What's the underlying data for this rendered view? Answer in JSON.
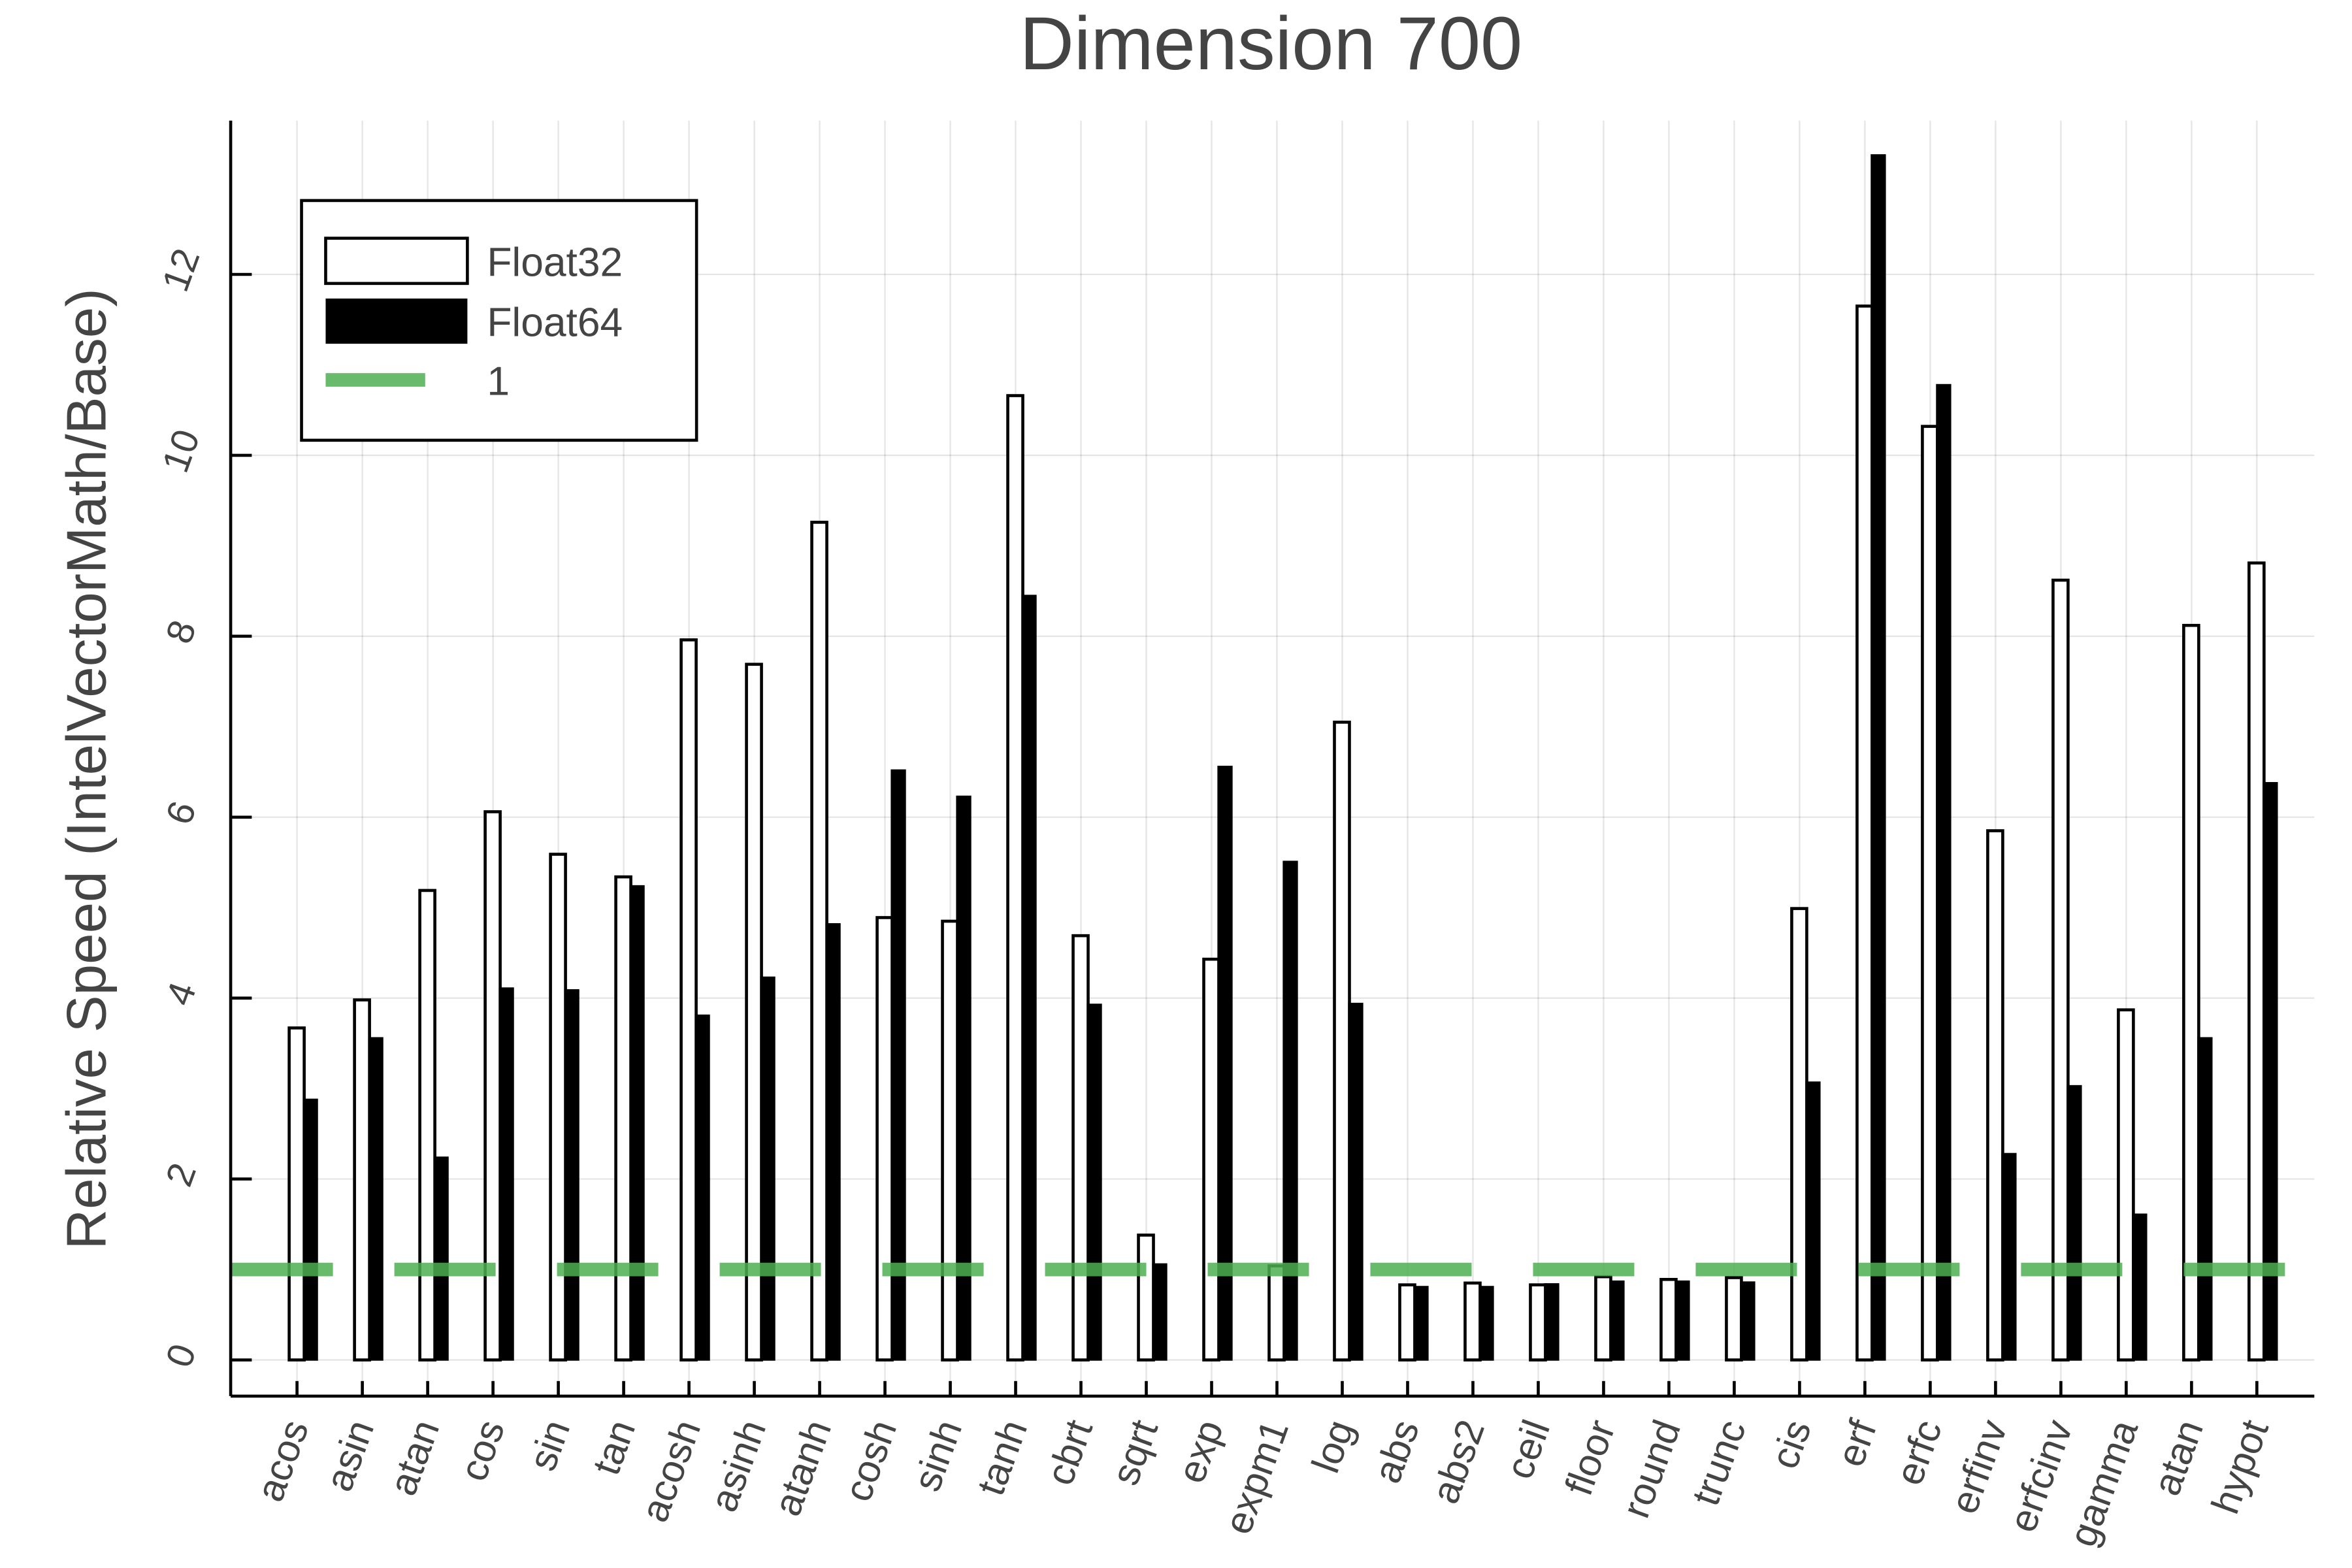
{
  "chart_data": {
    "type": "bar",
    "title": "Dimension 700",
    "xlabel": "",
    "ylabel": "Relative Speed (IntelVectorMath/Base)",
    "ylim": [
      -0.4,
      13.7
    ],
    "yticks": [
      0,
      2,
      4,
      6,
      8,
      10,
      12
    ],
    "grid": true,
    "legend_position": "top-left",
    "categories": [
      "acos",
      "asin",
      "atan",
      "cos",
      "sin",
      "tan",
      "acosh",
      "asinh",
      "atanh",
      "cosh",
      "sinh",
      "tanh",
      "cbrt",
      "sqrt",
      "exp",
      "expm1",
      "log",
      "abs",
      "abs2",
      "ceil",
      "floor",
      "round",
      "trunc",
      "cis",
      "erf",
      "erfc",
      "erfinv",
      "erfcinv",
      "gamma",
      "atan",
      "hypot"
    ],
    "series": [
      {
        "name": "Float32",
        "fill": "#ffffff",
        "stroke": "#000000",
        "values": [
          3.67,
          3.98,
          5.19,
          6.06,
          5.59,
          5.34,
          7.96,
          7.69,
          9.26,
          4.89,
          4.85,
          10.66,
          4.69,
          1.38,
          4.43,
          1.04,
          7.05,
          0.83,
          0.85,
          0.83,
          0.92,
          0.89,
          0.91,
          4.99,
          11.65,
          10.32,
          5.85,
          8.62,
          3.87,
          8.12,
          8.81
        ]
      },
      {
        "name": "Float64",
        "fill": "#000000",
        "stroke": "#000000",
        "values": [
          2.88,
          3.56,
          2.24,
          4.11,
          4.09,
          5.24,
          3.81,
          4.23,
          4.82,
          6.52,
          6.23,
          8.45,
          3.93,
          1.06,
          6.56,
          5.51,
          3.94,
          0.81,
          0.81,
          0.84,
          0.87,
          0.87,
          0.86,
          3.07,
          13.32,
          10.78,
          2.28,
          3.03,
          1.61,
          3.56,
          6.38
        ]
      }
    ],
    "reference_line": {
      "name": "1",
      "value": 1,
      "color": "#4caf50",
      "style": "dashed"
    }
  }
}
